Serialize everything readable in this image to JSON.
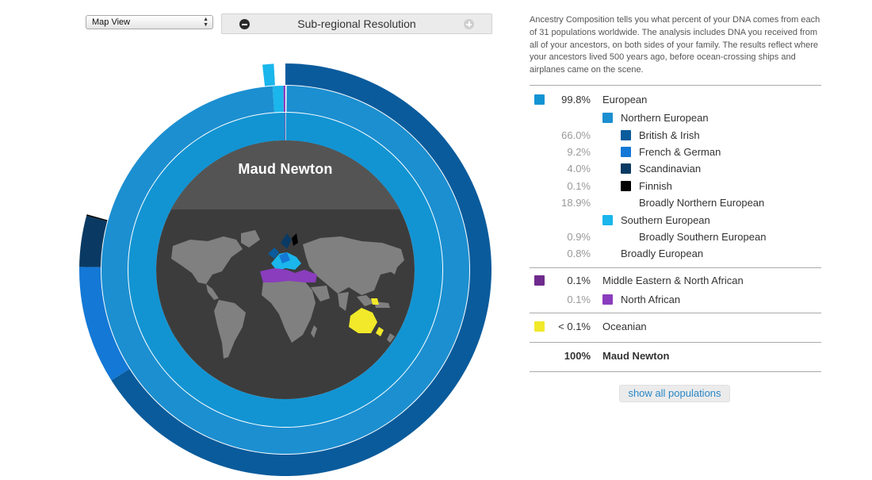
{
  "controls": {
    "view_select": "Map View",
    "resolution_label": "Sub-regional Resolution"
  },
  "chart": {
    "person_name": "Maud Newton"
  },
  "panel": {
    "intro": "Ancestry Composition tells you what percent of your DNA comes from each of 31 populations worldwide. The analysis includes DNA you received from all of your ancestors, on both sides of your family. The results reflect where your ancestors lived 500 years ago, before ocean-crossing ships and airplanes came on the scene.",
    "rows": [
      {
        "pct": "99.8%",
        "name": "European",
        "swatch": "#1294d3",
        "level": 0
      },
      {
        "pct": "",
        "name": "Northern European",
        "swatch": "#1c8fd0",
        "level": 1
      },
      {
        "pct": "66.0%",
        "name": "British & Irish",
        "swatch": "#0a5b9c",
        "level": 2
      },
      {
        "pct": "9.2%",
        "name": "French & German",
        "swatch": "#1478d6",
        "level": 2
      },
      {
        "pct": "4.0%",
        "name": "Scandinavian",
        "swatch": "#0a3a63",
        "level": 2
      },
      {
        "pct": "0.1%",
        "name": "Finnish",
        "swatch": "#000000",
        "level": 2
      },
      {
        "pct": "18.9%",
        "name": "Broadly Northern European",
        "swatch": "",
        "level": 2
      },
      {
        "pct": "",
        "name": "Southern European",
        "swatch": "#1ab6ec",
        "level": 1
      },
      {
        "pct": "0.9%",
        "name": "Broadly Southern European",
        "swatch": "",
        "level": 2
      },
      {
        "pct": "0.8%",
        "name": "Broadly European",
        "swatch": "",
        "level": 1
      },
      {
        "pct": "0.1%",
        "name": "Middle Eastern & North African",
        "swatch": "#6e2a8c",
        "level": 0
      },
      {
        "pct": "0.1%",
        "name": "North African",
        "swatch": "#8a3dbd",
        "level": 1
      },
      {
        "pct": "< 0.1%",
        "name": "Oceanian",
        "swatch": "#f1e92a",
        "level": 0
      },
      {
        "pct": "100%",
        "name": "Maud Newton",
        "swatch": "",
        "level": 0
      }
    ],
    "show_all": "show all populations"
  },
  "colors": {
    "european": "#1294d3",
    "british_irish": "#0a5b9c",
    "french_german": "#1478d6",
    "scandinavian": "#0a3a63",
    "southern_european": "#1ab6ec",
    "middle_eastern": "#6e2a8c",
    "north_african": "#8a3dbd",
    "oceanian": "#f1e92a",
    "center": "#3c3c3c",
    "land": "#808080"
  }
}
